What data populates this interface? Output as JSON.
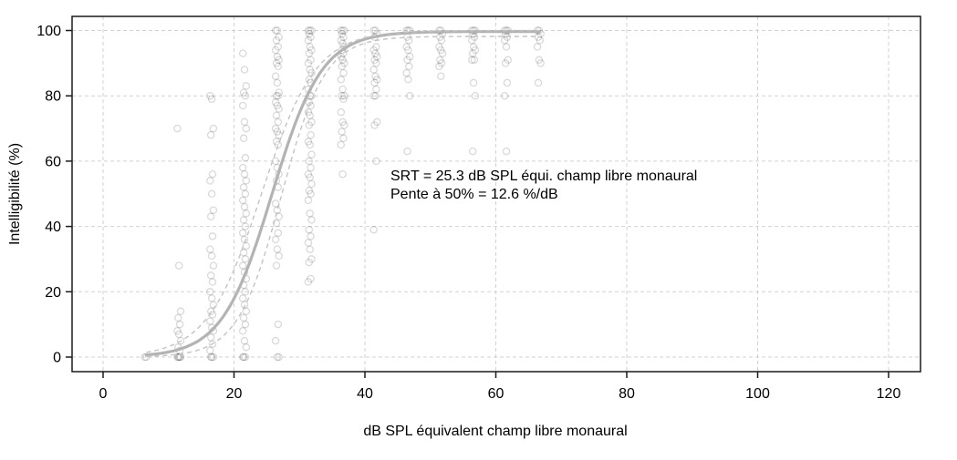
{
  "chart_data": {
    "type": "scatter",
    "title": "",
    "xlabel": "dB SPL équivalent champ libre monaural",
    "ylabel": "Intelligibilité (%)",
    "xlim": [
      0,
      120
    ],
    "ylim": [
      0,
      100
    ],
    "x_ticks": [
      0,
      20,
      40,
      60,
      80,
      100,
      120
    ],
    "y_ticks": [
      0,
      20,
      40,
      60,
      80,
      100
    ],
    "grid": "dashed-both-axes",
    "legend_position": "none",
    "point_style": "open-circle",
    "srt_db_spl": 25.3,
    "slope_at_50_pct_per_db": 12.6,
    "annotation": {
      "line1": "SRT = 25.3 dB SPL équi. champ libre monaural",
      "line2": "Pente à 50% = 12.6 %/dB"
    },
    "series": [
      {
        "level_db": 6.6,
        "scores_pct": [
          0,
          0
        ]
      },
      {
        "level_db": 11.6,
        "scores_pct": [
          70,
          28,
          14,
          12,
          10,
          8,
          7,
          5,
          3,
          2,
          0,
          0,
          0,
          0,
          0
        ]
      },
      {
        "level_db": 16.6,
        "scores_pct": [
          80,
          79,
          70,
          68,
          56,
          54,
          50,
          45,
          43,
          37,
          33,
          31,
          28,
          25,
          23,
          20,
          18,
          16,
          14,
          13,
          11,
          9,
          8,
          6,
          4,
          2,
          0,
          0,
          0
        ]
      },
      {
        "level_db": 21.6,
        "scores_pct": [
          93,
          88,
          83,
          81,
          80,
          77,
          72,
          70,
          67,
          61,
          58,
          56,
          54,
          52,
          50,
          48,
          46,
          44,
          42,
          40,
          38,
          36,
          34,
          32,
          30,
          28,
          26,
          24,
          22,
          20,
          18,
          16,
          14,
          12,
          10,
          8,
          5,
          3,
          0,
          0,
          0
        ]
      },
      {
        "level_db": 26.6,
        "scores_pct": [
          100,
          100,
          98,
          97,
          95,
          94,
          92,
          91,
          90,
          89,
          86,
          84,
          81,
          80,
          80,
          78,
          77,
          76,
          74,
          72,
          70,
          69,
          68,
          66,
          65,
          60,
          58,
          56,
          54,
          52,
          47,
          45,
          43,
          41,
          38,
          36,
          33,
          31,
          28,
          10,
          5,
          0,
          0
        ]
      },
      {
        "level_db": 31.6,
        "scores_pct": [
          100,
          100,
          100,
          99,
          98,
          97,
          95,
          94,
          93,
          91,
          90,
          88,
          87,
          85,
          84,
          82,
          80,
          80,
          78,
          77,
          75,
          74,
          72,
          71,
          68,
          66,
          65,
          62,
          60,
          58,
          56,
          55,
          53,
          51,
          50,
          48,
          44,
          42,
          39,
          37,
          35,
          33,
          30,
          29,
          24,
          23
        ]
      },
      {
        "level_db": 36.6,
        "scores_pct": [
          100,
          100,
          100,
          99,
          98,
          97,
          96,
          95,
          94,
          93,
          92,
          91,
          90,
          89,
          87,
          85,
          82,
          80,
          80,
          79,
          75,
          72,
          71,
          69,
          67,
          65,
          56
        ]
      },
      {
        "level_db": 41.6,
        "scores_pct": [
          100,
          100,
          99,
          98,
          95,
          94,
          93,
          92,
          91,
          90,
          88,
          86,
          85,
          84,
          82,
          80,
          80,
          72,
          71,
          60,
          39
        ]
      },
      {
        "level_db": 46.6,
        "scores_pct": [
          100,
          100,
          100,
          98,
          97,
          95,
          94,
          92,
          91,
          89,
          87,
          85,
          80,
          63
        ]
      },
      {
        "level_db": 51.6,
        "scores_pct": [
          100,
          100,
          99,
          98,
          97,
          95,
          94,
          93,
          91,
          90,
          89,
          86
        ]
      },
      {
        "level_db": 56.6,
        "scores_pct": [
          100,
          100,
          100,
          99,
          98,
          97,
          95,
          94,
          93,
          91,
          91,
          84,
          80,
          63
        ]
      },
      {
        "level_db": 61.6,
        "scores_pct": [
          100,
          100,
          100,
          99,
          98,
          97,
          95,
          91,
          90,
          84,
          80,
          63
        ]
      },
      {
        "level_db": 66.6,
        "scores_pct": [
          100,
          100,
          99,
          98,
          97,
          95,
          91,
          90,
          84
        ]
      }
    ],
    "fit_curves": [
      {
        "name": "psychometric-fit",
        "style": "solid",
        "logistic": {
          "max": 99.7,
          "k": 0.262,
          "mid": 25.8
        }
      },
      {
        "name": "ci-upper",
        "style": "dashed",
        "logistic": {
          "max": 100.0,
          "k": 0.24,
          "mid": 24.2
        }
      },
      {
        "name": "ci-lower",
        "style": "dashed",
        "logistic": {
          "max": 98.2,
          "k": 0.3,
          "mid": 27.2
        }
      }
    ],
    "curve_x_range_db": [
      6.6,
      66.6
    ],
    "colors": {
      "background": "#ffffff",
      "gridline": "#d2d2d2",
      "points": "rgba(0,0,0,0.15)",
      "fit_curve": "#b3b3b3",
      "ci_curve": "#c3c3c3",
      "axis": "#1a1a1a",
      "text": "#000000"
    }
  }
}
